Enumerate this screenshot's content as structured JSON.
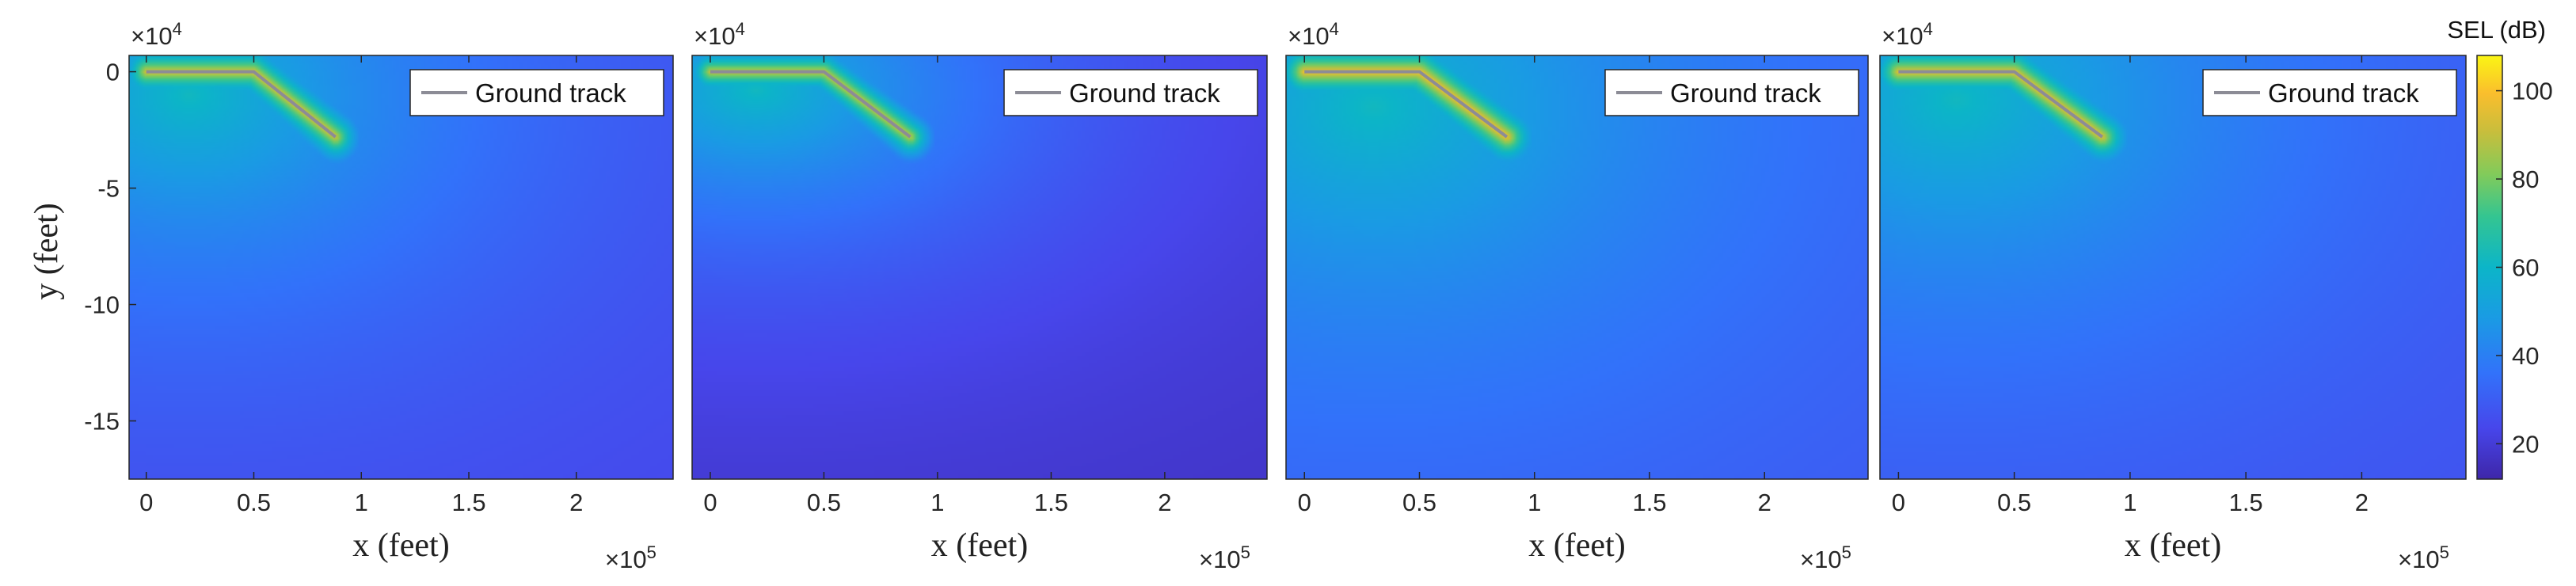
{
  "chart_data": [
    {
      "type": "heatmap",
      "panel": 1,
      "xlabel": "x (feet)",
      "ylabel": "y (feet)",
      "x_ticks": [
        "0",
        "0.5",
        "1",
        "1.5",
        "2"
      ],
      "x_tick_values": [
        0,
        50000,
        100000,
        150000,
        200000
      ],
      "x_exponent": "×10",
      "x_exponent_power": "5",
      "y_ticks": [
        "0",
        "-5",
        "-10",
        "-15"
      ],
      "y_tick_values": [
        0,
        -50000,
        -100000,
        -150000
      ],
      "y_exponent": "×10",
      "y_exponent_power": "4",
      "xlim": [
        -8000,
        245000
      ],
      "ylim": [
        -175000,
        7000
      ],
      "legend": "Ground track",
      "legend_placement": "top-right",
      "ground_track": {
        "x": [
          0,
          50000,
          88000
        ],
        "y": [
          0,
          0,
          -28000
        ]
      },
      "field": {
        "center": [
          20000,
          -10000
        ],
        "decay_x": 230000,
        "decay_y": 150000,
        "peak_db": 95,
        "floor_db": 22
      }
    },
    {
      "type": "heatmap",
      "panel": 2,
      "xlabel": "x (feet)",
      "ylabel": "",
      "x_ticks": [
        "0",
        "0.5",
        "1",
        "1.5",
        "2"
      ],
      "x_tick_values": [
        0,
        50000,
        100000,
        150000,
        200000
      ],
      "x_exponent": "×10",
      "x_exponent_power": "5",
      "y_exponent": "×10",
      "y_exponent_power": "4",
      "xlim": [
        -8000,
        245000
      ],
      "ylim": [
        -175000,
        7000
      ],
      "legend": "Ground track",
      "legend_placement": "top-right",
      "ground_track": {
        "x": [
          0,
          50000,
          88000
        ],
        "y": [
          0,
          0,
          -28000
        ]
      },
      "field": {
        "center": [
          20000,
          -8000
        ],
        "decay_x": 210000,
        "decay_y": 120000,
        "peak_db": 92,
        "floor_db": 16
      }
    },
    {
      "type": "heatmap",
      "panel": 3,
      "xlabel": "x (feet)",
      "ylabel": "",
      "x_ticks": [
        "0",
        "0.5",
        "1",
        "1.5",
        "2"
      ],
      "x_tick_values": [
        0,
        50000,
        100000,
        150000,
        200000
      ],
      "x_exponent": "×10",
      "x_exponent_power": "5",
      "y_exponent": "×10",
      "y_exponent_power": "4",
      "xlim": [
        -8000,
        245000
      ],
      "ylim": [
        -175000,
        7000
      ],
      "legend": "Ground track",
      "legend_placement": "top-right",
      "ground_track": {
        "x": [
          0,
          50000,
          88000
        ],
        "y": [
          0,
          0,
          -28000
        ]
      },
      "field": {
        "center": [
          30000,
          -15000
        ],
        "decay_x": 260000,
        "decay_y": 190000,
        "peak_db": 100,
        "floor_db": 26
      }
    },
    {
      "type": "heatmap",
      "panel": 4,
      "xlabel": "x (feet)",
      "ylabel": "",
      "x_ticks": [
        "0",
        "0.5",
        "1",
        "1.5",
        "2"
      ],
      "x_tick_values": [
        0,
        50000,
        100000,
        150000,
        200000
      ],
      "x_exponent": "×10",
      "x_exponent_power": "5",
      "y_exponent": "×10",
      "y_exponent_power": "4",
      "xlim": [
        -8000,
        245000
      ],
      "ylim": [
        -175000,
        7000
      ],
      "legend": "Ground track",
      "legend_placement": "top-right",
      "ground_track": {
        "x": [
          0,
          50000,
          88000
        ],
        "y": [
          0,
          0,
          -28000
        ]
      },
      "field": {
        "center": [
          25000,
          -12000
        ],
        "decay_x": 245000,
        "decay_y": 175000,
        "peak_db": 97,
        "floor_db": 24
      }
    }
  ],
  "colorbar": {
    "title": "SEL (dB)",
    "ticks": [
      "20",
      "40",
      "60",
      "80",
      "100"
    ],
    "tick_values": [
      20,
      40,
      60,
      80,
      100
    ],
    "range": [
      12,
      108
    ],
    "colormap": "parula"
  }
}
